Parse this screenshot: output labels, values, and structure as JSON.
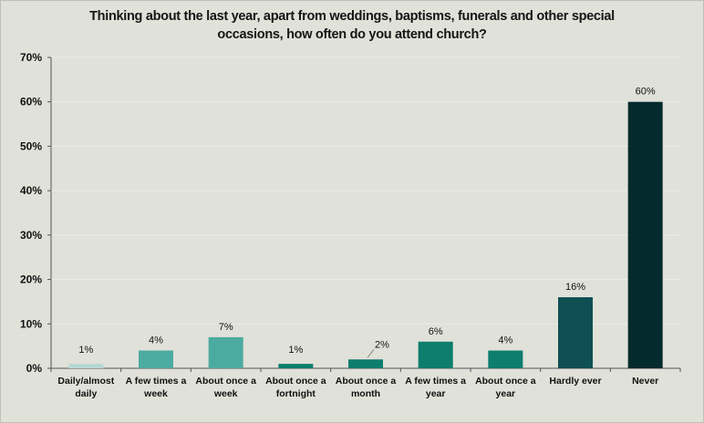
{
  "chart_data": {
    "type": "bar",
    "title_lines": [
      "Thinking about the last year, apart from weddings, baptisms, funerals and other special",
      "occasions, how often do you attend church?"
    ],
    "categories": [
      [
        "Daily/almost",
        "daily"
      ],
      [
        "A few times a",
        "week"
      ],
      [
        "About once a",
        "week"
      ],
      [
        "About once a",
        "fortnight"
      ],
      [
        "About once a",
        "month"
      ],
      [
        "A few times a",
        "year"
      ],
      [
        "About once a",
        "year"
      ],
      [
        "Hardly ever"
      ],
      [
        "Never"
      ]
    ],
    "values": [
      1,
      4,
      7,
      1,
      2,
      6,
      4,
      16,
      60
    ],
    "data_labels": [
      "1%",
      "4%",
      "7%",
      "1%",
      "2%",
      "6%",
      "4%",
      "16%",
      "60%"
    ],
    "bar_colors": [
      "#b6d8d2",
      "#4caba0",
      "#4caba0",
      "#0d7d6e",
      "#0d7d6e",
      "#0d7d6e",
      "#0d7d6e",
      "#0d4f53",
      "#032a2c"
    ],
    "yticks": [
      "0%",
      "10%",
      "20%",
      "30%",
      "40%",
      "50%",
      "60%",
      "70%"
    ],
    "ylim": [
      0,
      70
    ],
    "ylabel": "",
    "xlabel": "",
    "grid": true
  }
}
